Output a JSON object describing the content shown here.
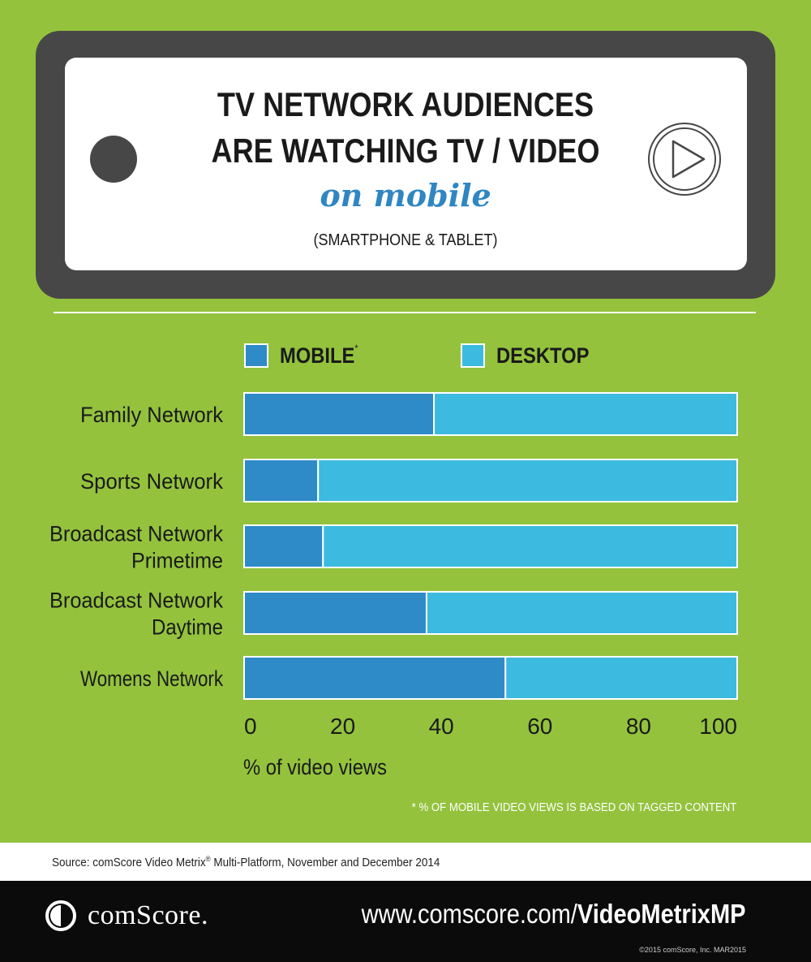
{
  "header": {
    "title_line1": "TV NETWORK AUDIENCES",
    "title_line2": "ARE WATCHING TV / VIDEO",
    "title_line3": "on mobile",
    "subtitle": "(SMARTPHONE & TABLET)"
  },
  "icons": {
    "camera": "camera-dot",
    "play": "play-button"
  },
  "colors": {
    "background": "#94c23d",
    "mobile": "#2f8ac8",
    "desktop": "#3cbadf",
    "accent_blue": "#2f86c3",
    "phone": "#474747"
  },
  "legend": {
    "mobile_label": "MOBILE",
    "mobile_marker": "*",
    "desktop_label": "DESKTOP"
  },
  "chart_data": {
    "type": "bar",
    "orientation": "horizontal",
    "stacked": true,
    "categories": [
      [
        "Family Network"
      ],
      [
        "Sports Network"
      ],
      [
        "Broadcast Network",
        "Primetime"
      ],
      [
        "Broadcast Network",
        "Daytime"
      ],
      [
        "Womens Network"
      ]
    ],
    "series": [
      {
        "name": "MOBILE",
        "values": [
          38.5,
          15,
          16,
          37,
          53
        ]
      },
      {
        "name": "DESKTOP",
        "values": [
          61.5,
          85,
          84,
          63,
          47
        ]
      }
    ],
    "xlim": [
      0,
      100
    ],
    "xticks": [
      "0",
      "20",
      "40",
      "60",
      "80",
      "100"
    ],
    "xlabel": "% of video views",
    "legend_position": "top",
    "grid": false
  },
  "footnote": "* % OF MOBILE VIDEO VIEWS IS BASED ON TAGGED CONTENT",
  "source": {
    "prefix": "Source: comScore Video Metrix",
    "reg": "®",
    "suffix": " Multi-Platform, November and December 2014"
  },
  "footer": {
    "logo_text": "comScore.",
    "url_prefix": "www.comscore.com/",
    "url_bold": "VideoMetrixMP",
    "copyright": "©2015 comScore, Inc.  MAR2015"
  }
}
